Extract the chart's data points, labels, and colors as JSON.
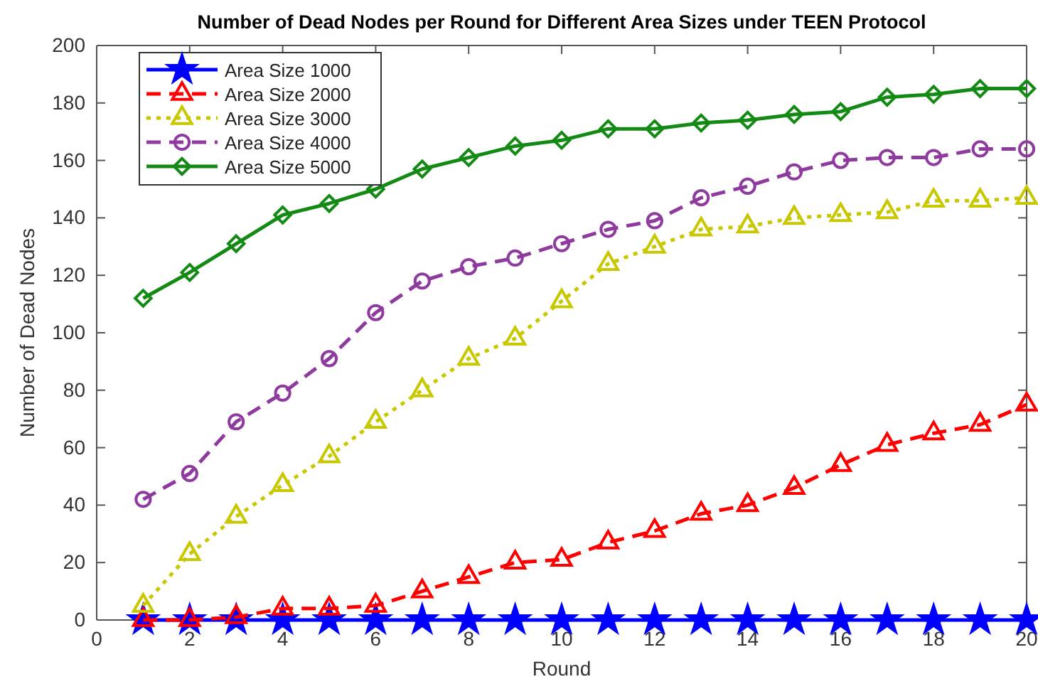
{
  "chart_data": {
    "type": "line",
    "title": "Number of Dead Nodes per Round for Different Area Sizes under TEEN Protocol",
    "xlabel": "Round",
    "ylabel": "Number of Dead Nodes",
    "x": [
      1,
      2,
      3,
      4,
      5,
      6,
      7,
      8,
      9,
      10,
      11,
      12,
      13,
      14,
      15,
      16,
      17,
      18,
      19,
      20
    ],
    "xlim": [
      0,
      20
    ],
    "xticks": [
      0,
      2,
      4,
      6,
      8,
      10,
      12,
      14,
      16,
      18,
      20
    ],
    "ylim": [
      0,
      200
    ],
    "yticks": [
      0,
      20,
      40,
      60,
      80,
      100,
      120,
      140,
      160,
      180,
      200
    ],
    "grid": false,
    "legend": "top left",
    "series": [
      {
        "name": "Area Size 1000",
        "color": "#0000ff",
        "marker": "star",
        "line_style": "solid",
        "values": [
          0,
          0,
          0,
          0,
          0,
          0,
          0,
          0,
          0,
          0,
          0,
          0,
          0,
          0,
          0,
          0,
          0,
          0,
          0,
          0
        ]
      },
      {
        "name": "Area Size 2000",
        "color": "#ff0000",
        "marker": "triangle",
        "line_style": "dashed",
        "values": [
          0,
          0,
          1,
          4,
          4,
          5,
          10,
          15,
          20,
          21,
          27,
          31,
          37,
          40,
          46,
          54,
          61,
          65,
          68,
          75
        ]
      },
      {
        "name": "Area Size 3000",
        "color": "#c8c800",
        "marker": "triangle",
        "line_style": "dotted",
        "values": [
          5,
          23,
          36,
          47,
          57,
          69,
          80,
          91,
          98,
          111,
          124,
          130,
          136,
          137,
          140,
          141,
          142,
          146,
          146,
          147
        ]
      },
      {
        "name": "Area Size 4000",
        "color": "#8e3a9e",
        "marker": "circle",
        "line_style": "dashed",
        "values": [
          42,
          51,
          69,
          79,
          91,
          107,
          118,
          123,
          126,
          131,
          136,
          139,
          147,
          151,
          156,
          160,
          161,
          161,
          164,
          164
        ]
      },
      {
        "name": "Area Size 5000",
        "color": "#138a13",
        "marker": "diamond",
        "line_style": "solid",
        "values": [
          112,
          121,
          131,
          141,
          145,
          150,
          157,
          161,
          165,
          167,
          171,
          171,
          173,
          174,
          176,
          177,
          182,
          183,
          185,
          185
        ]
      }
    ]
  }
}
